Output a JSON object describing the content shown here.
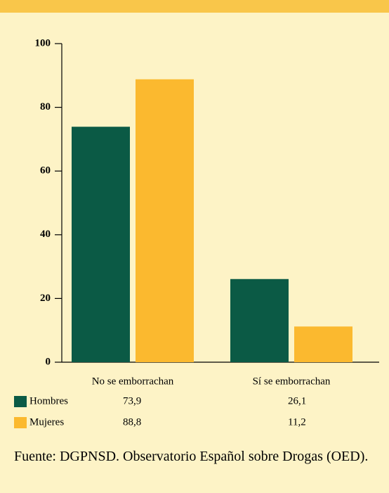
{
  "chart_data": {
    "type": "bar",
    "categories": [
      "No se emborrachan",
      "Sí se emborrachan"
    ],
    "series": [
      {
        "name": "Hombres",
        "color": "#0b5a45",
        "values": [
          73.9,
          26.1
        ],
        "value_labels": [
          "73,9",
          "26,1"
        ]
      },
      {
        "name": "Mujeres",
        "color": "#fbb92f",
        "values": [
          88.8,
          11.2
        ],
        "value_labels": [
          "88,8",
          "11,2"
        ]
      }
    ],
    "ylim": [
      0,
      100
    ],
    "yticks": [
      0,
      20,
      40,
      60,
      80,
      100
    ],
    "source": "Fuente: DGPNSD. Observatorio Español sobre Drogas (OED)."
  }
}
